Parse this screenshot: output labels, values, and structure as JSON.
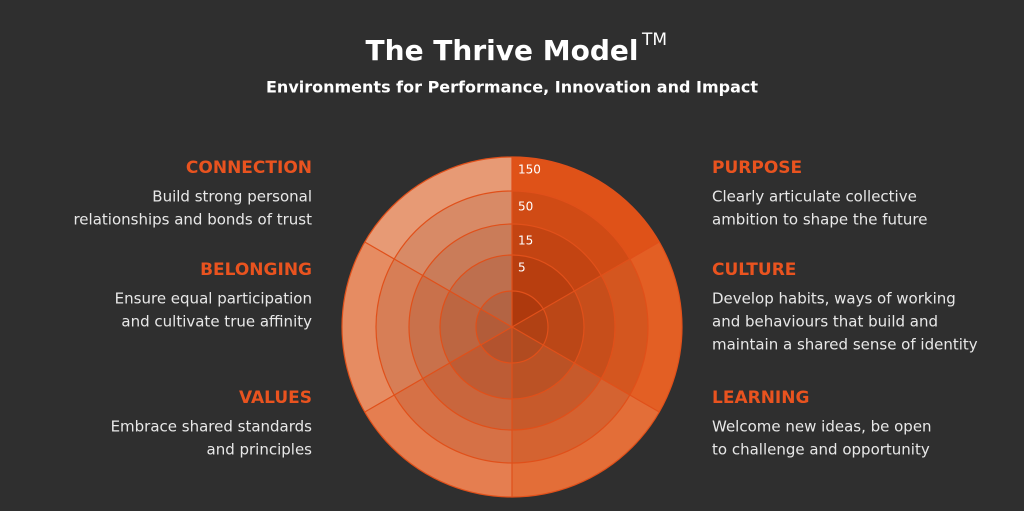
{
  "header": {
    "title": "The Thrive Model",
    "title_mark": "TM",
    "subtitle": "Environments for Performance, Innovation and Impact"
  },
  "left": [
    {
      "heading": "CONNECTION",
      "lines": [
        "Build strong personal",
        "relationships and bonds of trust"
      ]
    },
    {
      "heading": "BELONGING",
      "lines": [
        "Ensure equal participation",
        "and cultivate true affinity"
      ]
    },
    {
      "heading": "VALUES",
      "lines": [
        "Embrace shared standards",
        "and principles"
      ]
    }
  ],
  "right": [
    {
      "heading": "PURPOSE",
      "lines": [
        "Clearly articulate collective",
        "ambition to shape the future"
      ]
    },
    {
      "heading": "CULTURE",
      "lines": [
        "Develop habits, ways of working",
        "and behaviours that build and",
        "maintain a shared sense of identity"
      ]
    },
    {
      "heading": "LEARNING",
      "lines": [
        "Welcome new ideas, be open",
        "to challenge and opportunity"
      ]
    }
  ],
  "ring_labels": [
    150,
    50,
    15,
    5
  ]
}
